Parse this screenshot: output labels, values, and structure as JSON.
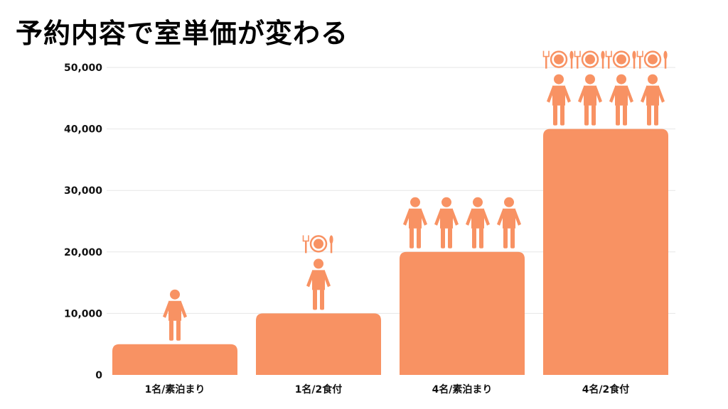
{
  "title": "予約内容で室単価が変わる",
  "colors": {
    "bar": "#F89263",
    "grid": "#e6e6e6",
    "text": "#111111"
  },
  "chart_data": {
    "type": "bar",
    "categories": [
      "1名/素泊まり",
      "1名/2食付",
      "4名/素泊まり",
      "4名/2食付"
    ],
    "values": [
      5000,
      10000,
      20000,
      40000
    ],
    "ylim": [
      0,
      50000
    ],
    "yticks": [
      0,
      10000,
      20000,
      30000,
      40000,
      50000
    ],
    "ytick_labels": [
      "0",
      "10,000",
      "20,000",
      "30,000",
      "40,000",
      "50,000"
    ],
    "grid": true,
    "annotations": [
      {
        "people": 1,
        "meals": false,
        "icons": [
          "person-icon"
        ]
      },
      {
        "people": 1,
        "meals": true,
        "icons": [
          "person-icon",
          "plate-cutlery-icon"
        ]
      },
      {
        "people": 4,
        "meals": false,
        "icons": [
          "person-icon"
        ]
      },
      {
        "people": 4,
        "meals": true,
        "icons": [
          "person-icon",
          "plate-cutlery-icon"
        ]
      }
    ]
  }
}
